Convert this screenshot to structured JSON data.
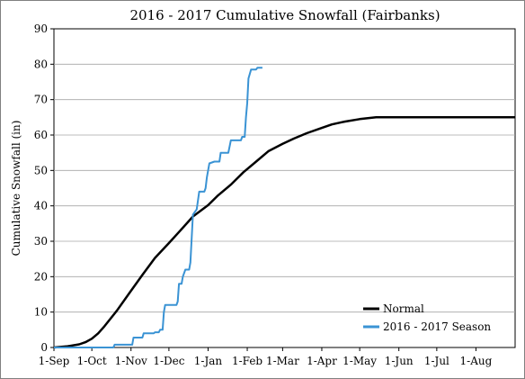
{
  "chart_data": {
    "type": "line",
    "title": "2016 - 2017 Cumulative Snowfall (Fairbanks)",
    "xlabel": "",
    "ylabel": "Cumulative Snowfall (in)",
    "x_unit": "day of season (0 = 1-Sep)",
    "xlim": [
      0,
      365
    ],
    "ylim": [
      0,
      90
    ],
    "yticks": [
      0,
      10,
      20,
      30,
      40,
      50,
      60,
      70,
      80,
      90
    ],
    "xticks": [
      {
        "label": "1-Sep",
        "value": 0
      },
      {
        "label": "1-Oct",
        "value": 30
      },
      {
        "label": "1-Nov",
        "value": 61
      },
      {
        "label": "1-Dec",
        "value": 91
      },
      {
        "label": "1-Jan",
        "value": 122
      },
      {
        "label": "1-Feb",
        "value": 153
      },
      {
        "label": "1-Mar",
        "value": 181
      },
      {
        "label": "1-Apr",
        "value": 212
      },
      {
        "label": "1-May",
        "value": 242
      },
      {
        "label": "1-Jun",
        "value": 273
      },
      {
        "label": "1-Jul",
        "value": 303
      },
      {
        "label": "1-Aug",
        "value": 334
      }
    ],
    "grid": {
      "horizontal": true,
      "vertical": false
    },
    "legend_position": "bottom-right",
    "series": [
      {
        "name": "Normal",
        "color": "#000000",
        "points": [
          [
            0,
            0
          ],
          [
            10,
            0.3
          ],
          [
            20,
            0.9
          ],
          [
            25,
            1.5
          ],
          [
            30,
            2.5
          ],
          [
            35,
            4
          ],
          [
            40,
            6
          ],
          [
            50,
            10.5
          ],
          [
            60,
            15.5
          ],
          [
            70,
            20.5
          ],
          [
            80,
            25.3
          ],
          [
            91,
            29.5
          ],
          [
            100,
            33
          ],
          [
            110,
            37
          ],
          [
            122,
            40.2
          ],
          [
            130,
            43
          ],
          [
            140,
            46
          ],
          [
            150,
            49.5
          ],
          [
            160,
            52.5
          ],
          [
            170,
            55.5
          ],
          [
            181,
            57.5
          ],
          [
            190,
            59
          ],
          [
            200,
            60.5
          ],
          [
            212,
            62
          ],
          [
            220,
            63
          ],
          [
            230,
            63.8
          ],
          [
            242,
            64.5
          ],
          [
            255,
            65
          ],
          [
            273,
            65
          ],
          [
            300,
            65
          ],
          [
            334,
            65
          ],
          [
            365,
            65
          ]
        ]
      },
      {
        "name": "2016 - 2017 Season",
        "color": "#3a93d4",
        "points": [
          [
            0,
            0
          ],
          [
            47,
            0
          ],
          [
            48,
            0.8
          ],
          [
            62,
            0.8
          ],
          [
            63,
            2.8
          ],
          [
            70,
            2.8
          ],
          [
            71,
            4
          ],
          [
            79,
            4
          ],
          [
            80,
            4.3
          ],
          [
            83,
            4.3
          ],
          [
            84,
            5
          ],
          [
            86,
            5
          ],
          [
            87,
            10
          ],
          [
            88,
            12
          ],
          [
            97,
            12
          ],
          [
            98,
            13
          ],
          [
            99,
            18
          ],
          [
            101,
            18
          ],
          [
            102,
            20
          ],
          [
            104,
            22
          ],
          [
            107,
            22
          ],
          [
            108,
            24
          ],
          [
            110,
            37.5
          ],
          [
            111,
            38
          ],
          [
            113,
            39
          ],
          [
            115,
            44
          ],
          [
            119,
            44
          ],
          [
            120,
            45
          ],
          [
            121,
            48
          ],
          [
            123,
            52
          ],
          [
            127,
            52.5
          ],
          [
            131,
            52.5
          ],
          [
            132,
            55
          ],
          [
            138,
            55
          ],
          [
            140,
            58.5
          ],
          [
            148,
            58.5
          ],
          [
            149,
            59.5
          ],
          [
            151,
            59.5
          ],
          [
            152,
            65
          ],
          [
            153,
            69
          ],
          [
            154,
            76
          ],
          [
            156,
            78.5
          ],
          [
            160,
            78.5
          ],
          [
            161,
            79
          ],
          [
            165,
            79
          ]
        ]
      }
    ]
  }
}
